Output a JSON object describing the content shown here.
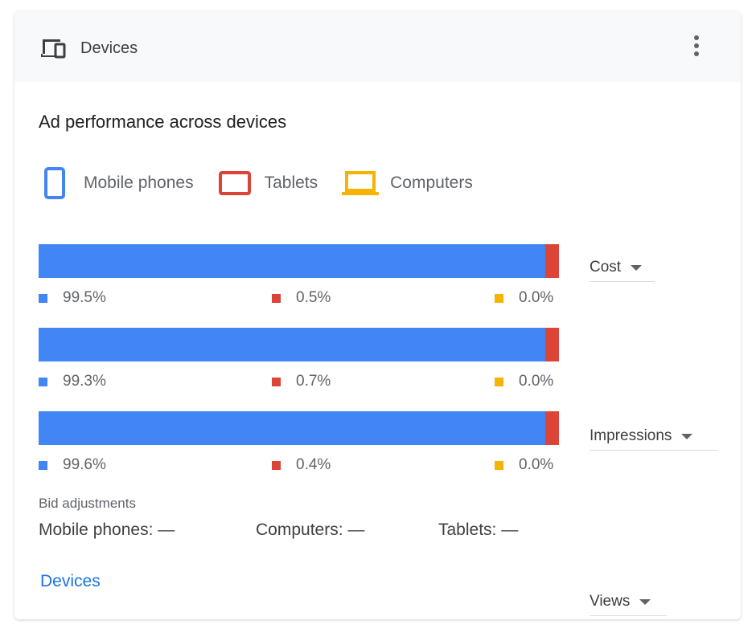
{
  "header": {
    "title": "Devices",
    "icon": "devices-icon",
    "menu_icon": "more-vert-icon"
  },
  "subtitle": "Ad performance across devices",
  "colors": {
    "mobile": "#4285f4",
    "tablets": "#db4437",
    "computers": "#f4b400"
  },
  "legend": [
    {
      "label": "Mobile phones",
      "icon": "phone-icon"
    },
    {
      "label": "Tablets",
      "icon": "tablet-icon"
    },
    {
      "label": "Computers",
      "icon": "laptop-icon"
    }
  ],
  "chart_data": {
    "type": "bar",
    "stacked": true,
    "categories": [
      "Cost",
      "Impressions",
      "Views"
    ],
    "series": [
      {
        "name": "Mobile phones",
        "values": [
          99.5,
          99.3,
          99.6
        ]
      },
      {
        "name": "Tablets",
        "values": [
          0.5,
          0.7,
          0.4
        ]
      },
      {
        "name": "Computers",
        "values": [
          0.0,
          0.0,
          0.0
        ]
      }
    ],
    "labels": [
      [
        "99.5%",
        "0.5%",
        "0.0%"
      ],
      [
        "99.3%",
        "0.7%",
        "0.0%"
      ],
      [
        "99.6%",
        "0.4%",
        "0.0%"
      ]
    ]
  },
  "bid": {
    "title": "Bid adjustments",
    "mobile": "Mobile phones: —",
    "computers": "Computers: —",
    "tablets": "Tablets: —"
  },
  "link": "Devices"
}
